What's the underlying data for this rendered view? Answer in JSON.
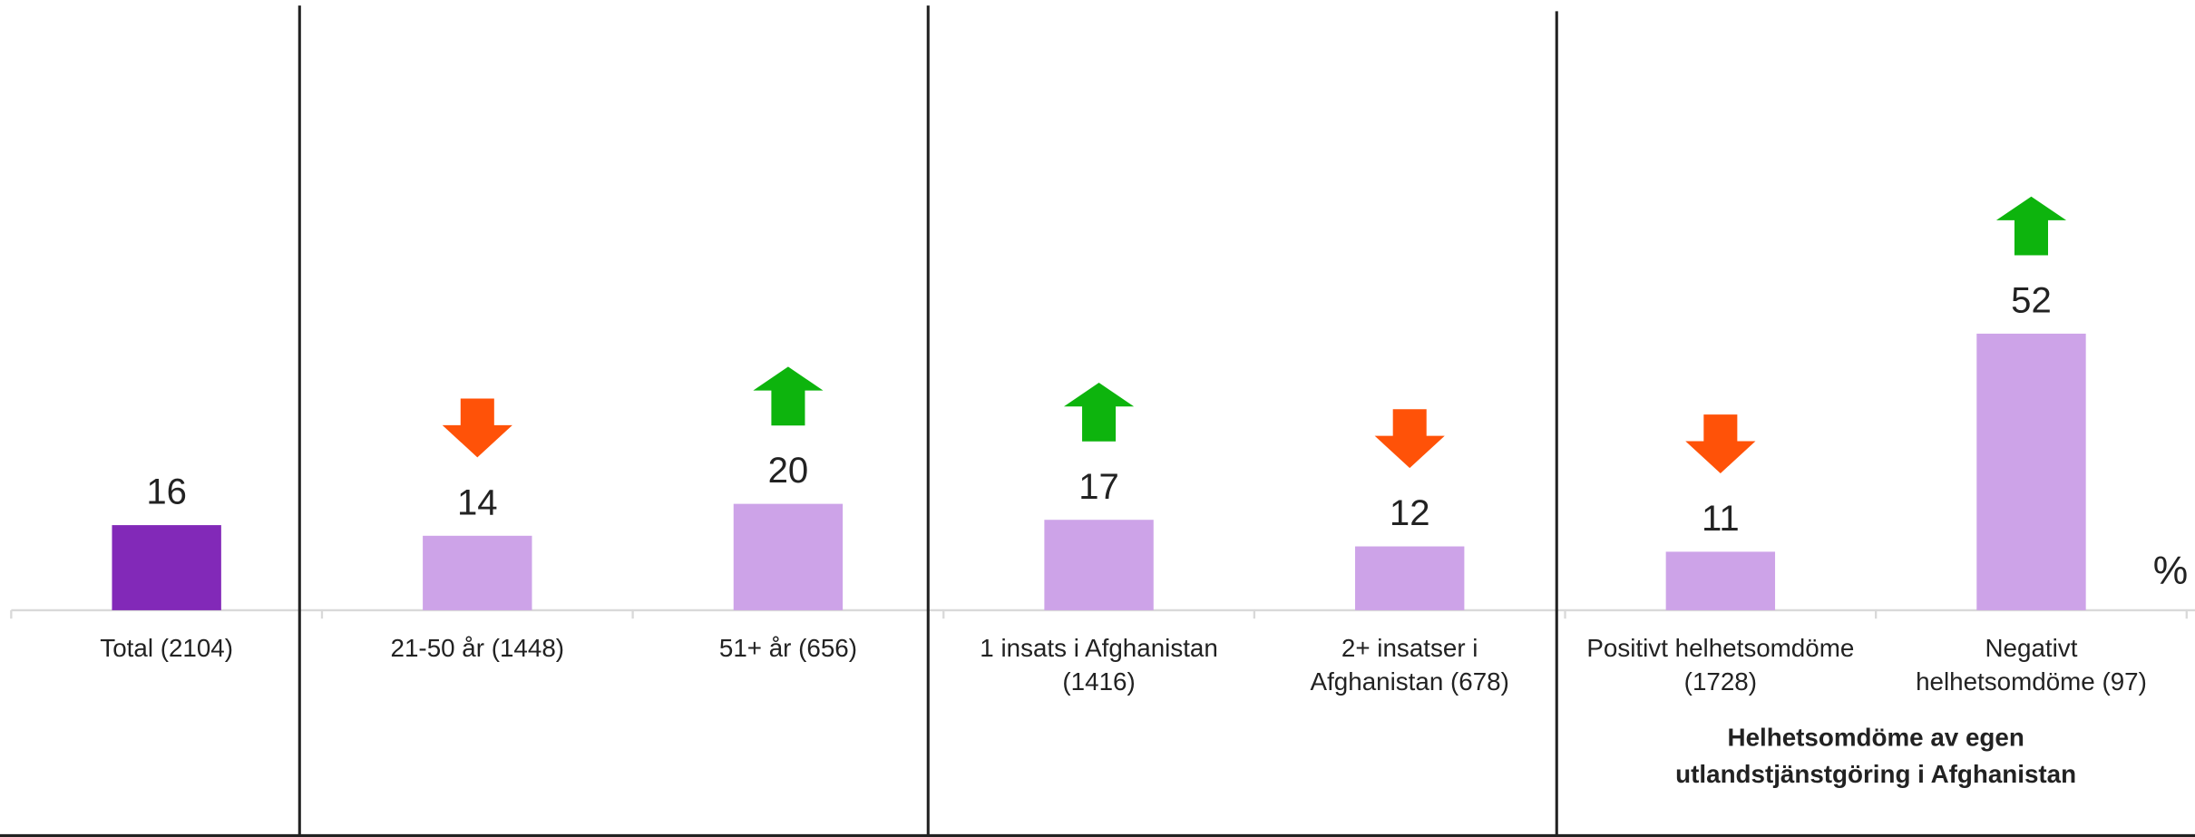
{
  "chart_data": {
    "type": "bar",
    "categories": [
      "Total (2104)",
      "21-50 år (1448)",
      "51+ år (656)",
      "1 insats i Afghanistan\n(1416)",
      "2+ insatser i\nAfghanistan (678)",
      "Positivt helhetsomdöme\n(1728)",
      "Negativt\nhelhetsomdöme (97)"
    ],
    "values": [
      16,
      14,
      20,
      17,
      12,
      11,
      52
    ],
    "colors": [
      "#8229b8",
      "#cda3e8",
      "#cda3e8",
      "#cda3e8",
      "#cda3e8",
      "#cda3e8",
      "#cda3e8"
    ],
    "arrows": [
      null,
      "down",
      "up",
      "up",
      "down",
      "down",
      "up"
    ],
    "arrow_colors": {
      "up": "#0db40d",
      "down": "#ff5208"
    },
    "ylim": [
      0,
      110
    ],
    "unit": "%",
    "group_label": "Helhetsomdöme av egen\nutlandstjänstgöring i Afghanistan"
  }
}
